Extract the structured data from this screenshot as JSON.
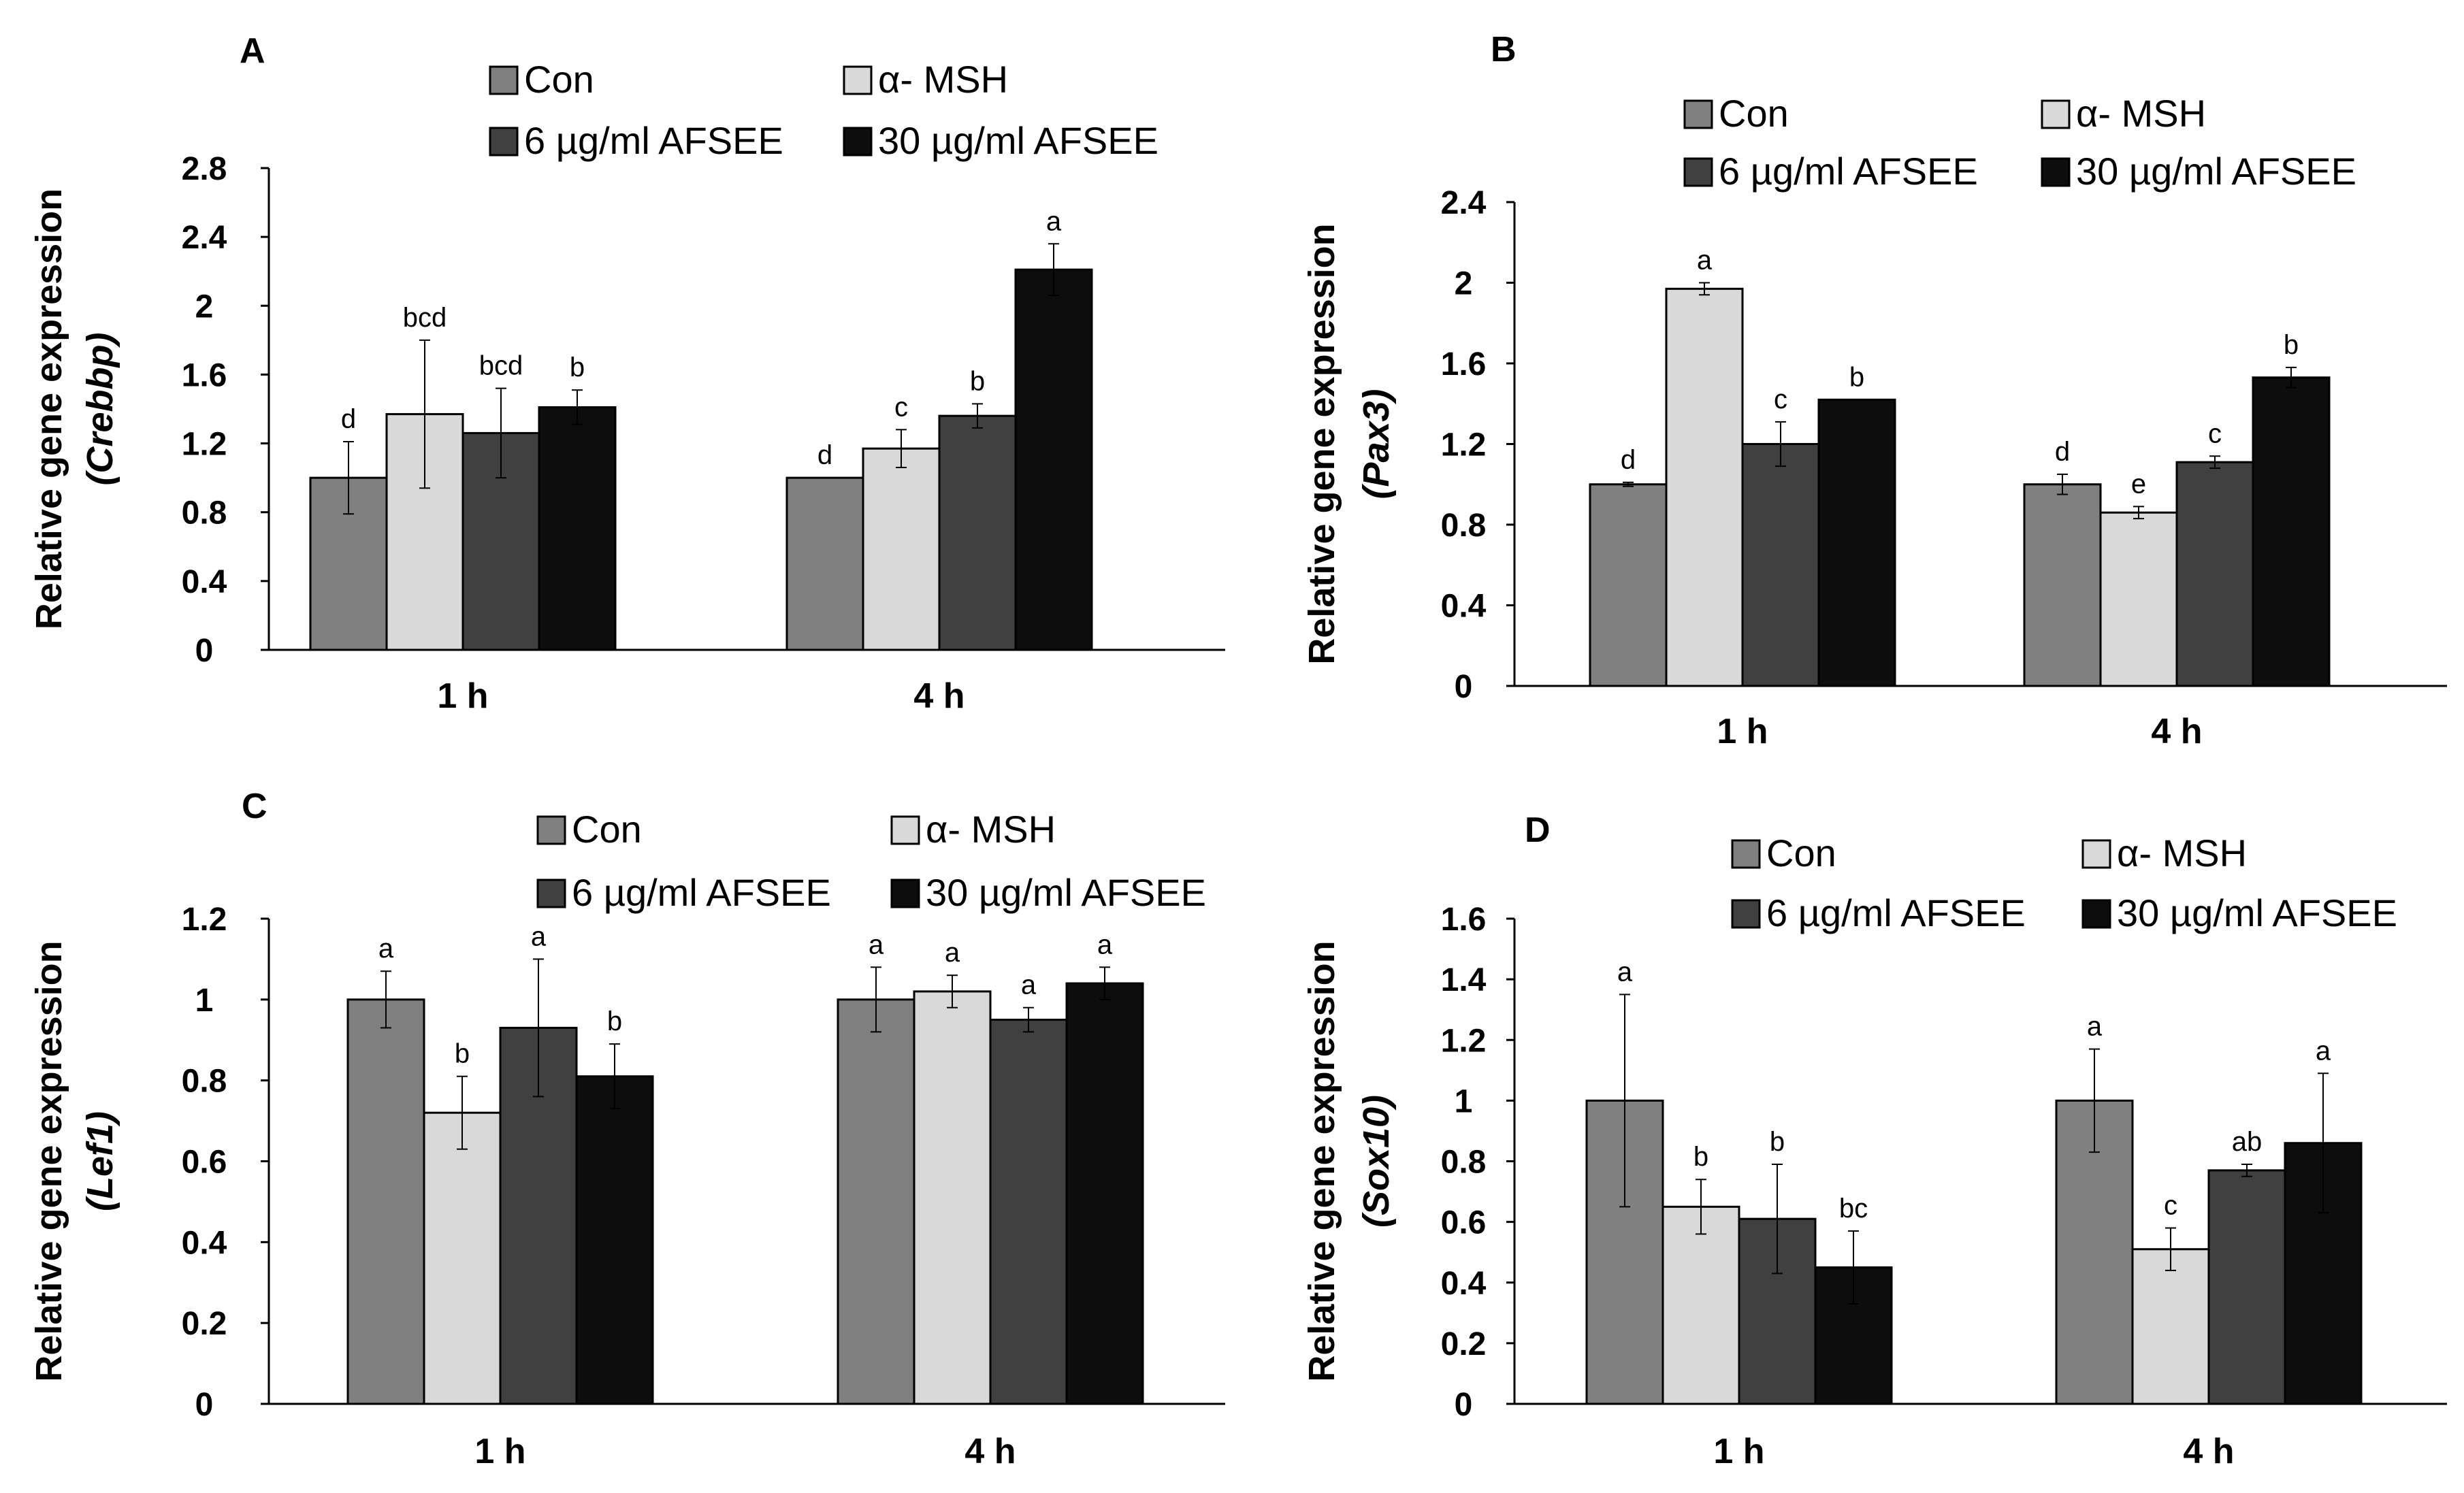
{
  "colors": {
    "Con": "#808080",
    "alpha_MSH": "#d9d9d9",
    "AFSEE_6": "#404040",
    "AFSEE_30": "#0d0d0d"
  },
  "chart_data": [
    {
      "panel": "A",
      "type": "bar",
      "ylabel_line1": "Relative gene expression",
      "ylabel_line2": "(Crebbp)",
      "gene": "Crebbp",
      "categories": [
        "1 h",
        "4 h"
      ],
      "ylim": [
        0,
        2.8
      ],
      "yticks": [
        "0",
        "0.4",
        "0.8",
        "1.2",
        "1.6",
        "2",
        "2.4",
        "2.8"
      ],
      "legend": [
        "Con",
        "α- MSH",
        "6 µg/ml AFSEE",
        "30 µg/ml AFSEE"
      ],
      "series": [
        {
          "name": "Con",
          "values": [
            1.0,
            1.0
          ],
          "errors": [
            0.21,
            0.0
          ],
          "labels": [
            "d",
            "d"
          ]
        },
        {
          "name": "α- MSH",
          "values": [
            1.37,
            1.17
          ],
          "errors": [
            0.43,
            0.11
          ],
          "labels": [
            "bcd",
            "c"
          ]
        },
        {
          "name": "6 µg/ml AFSEE",
          "values": [
            1.26,
            1.36
          ],
          "errors": [
            0.26,
            0.07
          ],
          "labels": [
            "bcd",
            "b"
          ]
        },
        {
          "name": "30 µg/ml AFSEE",
          "values": [
            1.41,
            2.21
          ],
          "errors": [
            0.1,
            0.15
          ],
          "labels": [
            "b",
            "a"
          ]
        }
      ]
    },
    {
      "panel": "B",
      "type": "bar",
      "ylabel_line1": "Relative gene expression",
      "ylabel_line2": "(Pax3)",
      "gene": "Pax3",
      "categories": [
        "1 h",
        "4 h"
      ],
      "ylim": [
        0,
        2.4
      ],
      "yticks": [
        "0",
        "0.4",
        "0.8",
        "1.2",
        "1.6",
        "2",
        "2.4"
      ],
      "legend": [
        "Con",
        "α- MSH",
        "6 µg/ml AFSEE",
        "30 µg/ml AFSEE"
      ],
      "series": [
        {
          "name": "Con",
          "values": [
            1.0,
            1.0
          ],
          "errors": [
            0.01,
            0.05
          ],
          "labels": [
            "d",
            "d"
          ]
        },
        {
          "name": "α- MSH",
          "values": [
            1.97,
            0.86
          ],
          "errors": [
            0.03,
            0.03
          ],
          "labels": [
            "a",
            "e"
          ]
        },
        {
          "name": "6 µg/ml AFSEE",
          "values": [
            1.2,
            1.11
          ],
          "errors": [
            0.11,
            0.03
          ],
          "labels": [
            "c",
            "c"
          ]
        },
        {
          "name": "30 µg/ml AFSEE",
          "values": [
            1.42,
            1.53
          ],
          "errors": [
            0.0,
            0.05
          ],
          "labels": [
            "b",
            "b"
          ]
        }
      ]
    },
    {
      "panel": "C",
      "type": "bar",
      "ylabel_line1": "Relative gene expression",
      "ylabel_line2": "(Lef1)",
      "gene": "Lef1",
      "categories": [
        "1 h",
        "4 h"
      ],
      "ylim": [
        0,
        1.2
      ],
      "yticks": [
        "0",
        "0.2",
        "0.4",
        "0.6",
        "0.8",
        "1",
        "1.2"
      ],
      "legend": [
        "Con",
        "α- MSH",
        "6 µg/ml AFSEE",
        "30 µg/ml AFSEE"
      ],
      "series": [
        {
          "name": "Con",
          "values": [
            1.0,
            1.0
          ],
          "errors": [
            0.07,
            0.08
          ],
          "labels": [
            "a",
            "a"
          ]
        },
        {
          "name": "α- MSH",
          "values": [
            0.72,
            1.02
          ],
          "errors": [
            0.09,
            0.04
          ],
          "labels": [
            "b",
            "a"
          ]
        },
        {
          "name": "6 µg/ml AFSEE",
          "values": [
            0.93,
            0.95
          ],
          "errors": [
            0.17,
            0.03
          ],
          "labels": [
            "a",
            "a"
          ]
        },
        {
          "name": "30 µg/ml AFSEE",
          "values": [
            0.81,
            1.04
          ],
          "errors": [
            0.08,
            0.04
          ],
          "labels": [
            "b",
            "a"
          ]
        }
      ]
    },
    {
      "panel": "D",
      "type": "bar",
      "ylabel_line1": "Relative gene expression",
      "ylabel_line2": "(Sox10)",
      "gene": "Sox10",
      "categories": [
        "1 h",
        "4 h"
      ],
      "ylim": [
        0,
        1.6
      ],
      "yticks": [
        "0",
        "0.2",
        "0.4",
        "0.6",
        "0.8",
        "1",
        "1.2",
        "1.4",
        "1.6"
      ],
      "legend": [
        "Con",
        "α- MSH",
        "6 µg/ml AFSEE",
        "30 µg/ml AFSEE"
      ],
      "series": [
        {
          "name": "Con",
          "values": [
            1.0,
            1.0
          ],
          "errors": [
            0.35,
            0.17
          ],
          "labels": [
            "a",
            "a"
          ]
        },
        {
          "name": "α- MSH",
          "values": [
            0.65,
            0.51
          ],
          "errors": [
            0.09,
            0.07
          ],
          "labels": [
            "b",
            "c"
          ]
        },
        {
          "name": "6 µg/ml AFSEE",
          "values": [
            0.61,
            0.77
          ],
          "errors": [
            0.18,
            0.02
          ],
          "labels": [
            "b",
            "ab"
          ]
        },
        {
          "name": "30 µg/ml AFSEE",
          "values": [
            0.45,
            0.86
          ],
          "errors": [
            0.12,
            0.23
          ],
          "labels": [
            "bc",
            "a"
          ]
        }
      ]
    }
  ]
}
